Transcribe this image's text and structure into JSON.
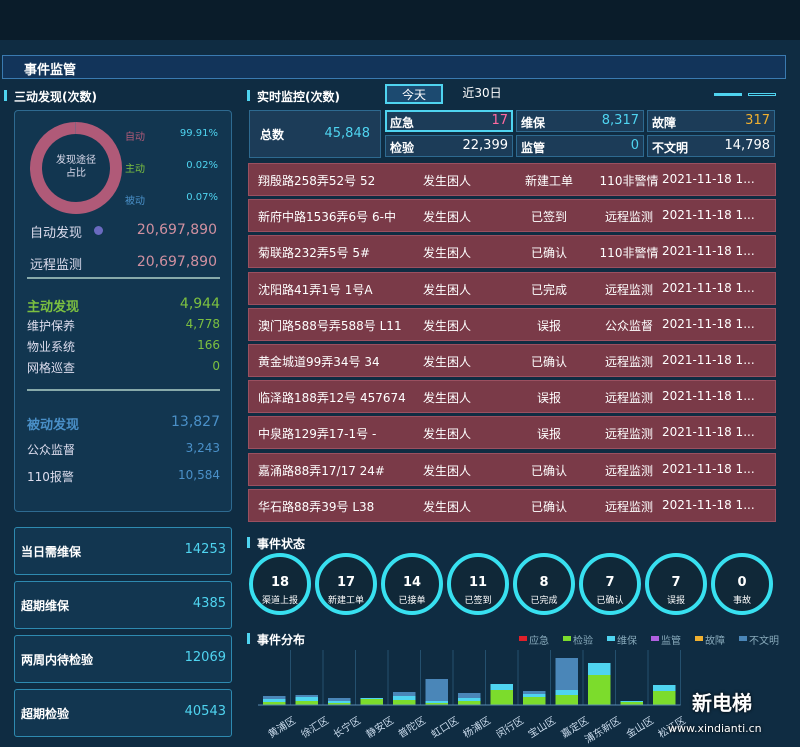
{
  "header": {
    "title": "事件监管"
  },
  "left": {
    "title": "三动发现(次数)",
    "auto": [
      {
        "label": "自动发现",
        "value": "20,697,890"
      },
      {
        "label": "远程监测",
        "value": "20,697,890"
      }
    ],
    "active": [
      {
        "label": "主动发现",
        "value": "4,944"
      },
      {
        "label": "维护保养",
        "value": "4,778"
      },
      {
        "label": "物业系统",
        "value": "166"
      },
      {
        "label": "网格巡查",
        "value": "0"
      }
    ],
    "passive": [
      {
        "label": "被动发现",
        "value": "13,827"
      },
      {
        "label": "公众监督",
        "value": "3,243"
      },
      {
        "label": "110报警",
        "value": "10,584"
      }
    ],
    "cards": [
      {
        "label": "当日需维保",
        "value": "14253"
      },
      {
        "label": "超期维保",
        "value": "4385"
      },
      {
        "label": "两周内待检验",
        "value": "12069"
      },
      {
        "label": "超期检验",
        "value": "40543"
      }
    ]
  },
  "monitor": {
    "title": "实时监控(次数)",
    "tabs": [
      "今天",
      "近30日"
    ],
    "total": {
      "label": "总数",
      "value": "45,848"
    },
    "cells": [
      {
        "label": "应急",
        "value": "17"
      },
      {
        "label": "检验",
        "value": "22,399"
      },
      {
        "label": "维保",
        "value": "8,317"
      },
      {
        "label": "监管",
        "value": "0"
      },
      {
        "label": "故障",
        "value": "317"
      },
      {
        "label": "不文明",
        "value": "14,798"
      }
    ],
    "rows": [
      [
        "翔殷路258弄52号 52",
        "发生困人",
        "新建工单",
        "110非警情",
        "2021-11-18 1..."
      ],
      [
        "新府中路1536弄6号 6-中",
        "发生困人",
        "已签到",
        "远程监测",
        "2021-11-18 1..."
      ],
      [
        "菊联路232弄5号 5#",
        "发生困人",
        "已确认",
        "110非警情",
        "2021-11-18 1..."
      ],
      [
        "沈阳路41弄1号 1号A",
        "发生困人",
        "已完成",
        "远程监测",
        "2021-11-18 1..."
      ],
      [
        "澳门路588号弄588号 L11",
        "发生困人",
        "误报",
        "公众监督",
        "2021-11-18 1..."
      ],
      [
        "黄金城道99弄34号 34",
        "发生困人",
        "已确认",
        "远程监测",
        "2021-11-18 1..."
      ],
      [
        "临泽路188弄12号 457674",
        "发生困人",
        "误报",
        "远程监测",
        "2021-11-18 1..."
      ],
      [
        "中泉路129弄17-1号 -",
        "发生困人",
        "误报",
        "远程监测",
        "2021-11-18 1..."
      ],
      [
        "嘉涌路88弄17/17 24#",
        "发生困人",
        "已确认",
        "远程监测",
        "2021-11-18 1..."
      ],
      [
        "华石路88弄39号 L38",
        "发生困人",
        "已确认",
        "远程监测",
        "2021-11-18 1..."
      ]
    ]
  },
  "status": {
    "title": "事件状态",
    "items": [
      {
        "count": "18",
        "label": "渠道上报"
      },
      {
        "count": "17",
        "label": "新建工单"
      },
      {
        "count": "14",
        "label": "已接单"
      },
      {
        "count": "11",
        "label": "已签到"
      },
      {
        "count": "8",
        "label": "已完成"
      },
      {
        "count": "7",
        "label": "已确认"
      },
      {
        "count": "7",
        "label": "误报"
      },
      {
        "count": "0",
        "label": "事故"
      }
    ]
  },
  "watermark": {
    "brand": "新电梯",
    "url": "www.xindianti.cn"
  },
  "chart_data": [
    {
      "type": "pie",
      "title": "发现途径占比",
      "categories": [
        "自动",
        "主动",
        "被动"
      ],
      "values": [
        99.91,
        0.02,
        0.07
      ],
      "value_labels": [
        "99.91%",
        "0.02%",
        "0.07%"
      ],
      "colors": [
        "#b05a78",
        "#7cc040",
        "#4a90c8"
      ]
    },
    {
      "type": "bar",
      "stacked": true,
      "title": "事件分布",
      "categories": [
        "黄浦区",
        "徐汇区",
        "长宁区",
        "静安区",
        "普陀区",
        "虹口区",
        "杨浦区",
        "闵行区",
        "宝山区",
        "嘉定区",
        "浦东新区",
        "金山区",
        "松江区"
      ],
      "ylim": [
        0,
        50
      ],
      "series": [
        {
          "name": "应急",
          "color": "#e0202a",
          "values": [
            0,
            0,
            0,
            0,
            0,
            0,
            0,
            0,
            0,
            0,
            0,
            0,
            0
          ]
        },
        {
          "name": "检验",
          "color": "#7cdc2c",
          "values": [
            3,
            4,
            2,
            6,
            5,
            2,
            4,
            15,
            8,
            10,
            30,
            3,
            14
          ]
        },
        {
          "name": "维保",
          "color": "#4fd4f0",
          "values": [
            3,
            4,
            2,
            1,
            4,
            2,
            3,
            6,
            3,
            5,
            12,
            1,
            6
          ]
        },
        {
          "name": "监管",
          "color": "#b060e0",
          "values": [
            0,
            0,
            0,
            0,
            0,
            0,
            0,
            0,
            0,
            0,
            0,
            0,
            0
          ]
        },
        {
          "name": "故障",
          "color": "#f0b030",
          "values": [
            0,
            0,
            0,
            0,
            0,
            0,
            0,
            0,
            0,
            0,
            0,
            0,
            0
          ]
        },
        {
          "name": "不文明",
          "color": "#4a86b8",
          "values": [
            3,
            2,
            3,
            0,
            4,
            22,
            5,
            0,
            3,
            32,
            0,
            0,
            0
          ]
        }
      ]
    }
  ]
}
